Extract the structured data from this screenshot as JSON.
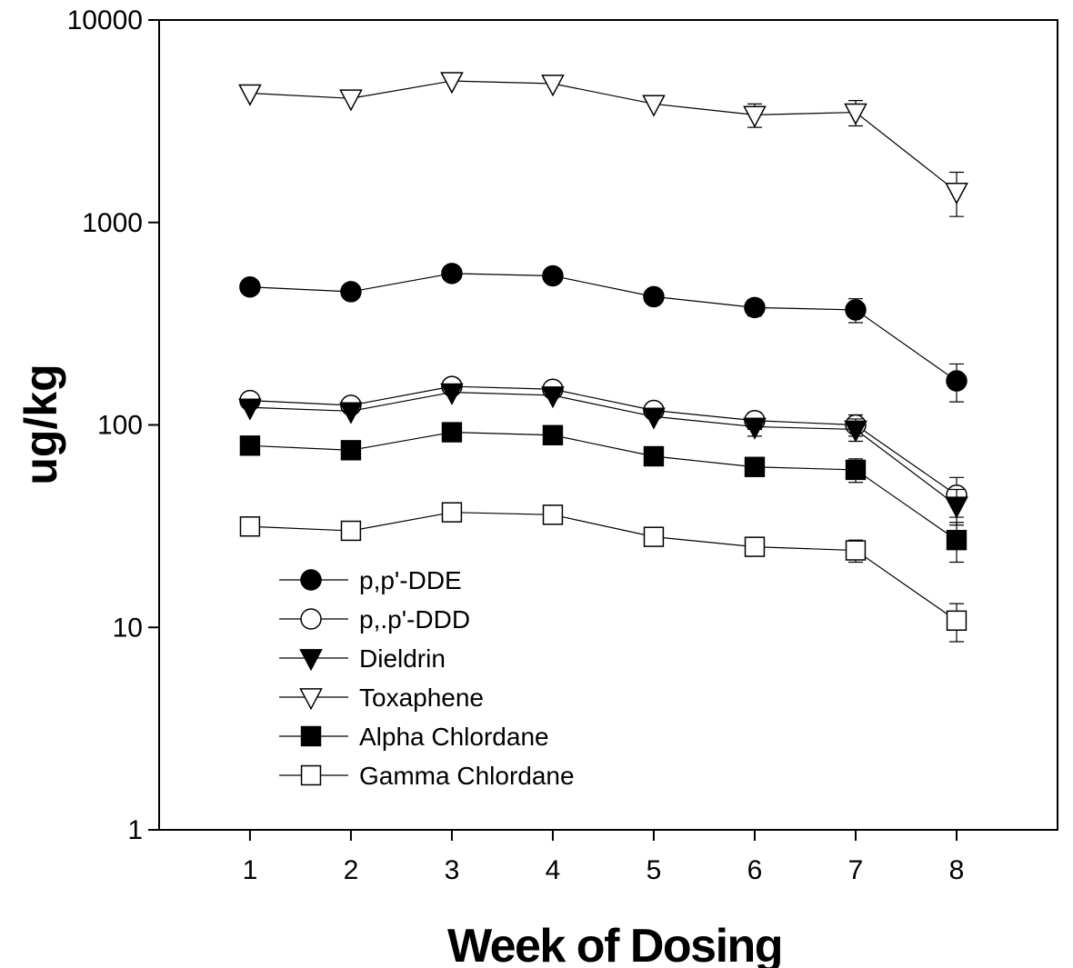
{
  "chart_data": {
    "type": "line",
    "title": "",
    "xlabel": "Week of Dosing",
    "ylabel": "ug/kg",
    "y_scale": "log",
    "ylim": [
      1,
      10000
    ],
    "xlim": [
      0.1,
      9.0
    ],
    "x": [
      1,
      2,
      3,
      4,
      5,
      6,
      7,
      8
    ],
    "x_tick_labels": [
      "1",
      "2",
      "3",
      "4",
      "5",
      "6",
      "7",
      "8"
    ],
    "y_tick_labels": [
      "1",
      "10",
      "100",
      "1000",
      "10000"
    ],
    "y_tick_values": [
      1,
      10,
      100,
      1000,
      10000
    ],
    "grid": false,
    "legend_position": "lower-left",
    "series": [
      {
        "name": "p,p'-DDE",
        "marker": "circle",
        "fill": "#000000",
        "values": [
          480,
          455,
          560,
          545,
          430,
          380,
          370,
          165
        ],
        "err": [
          0,
          0,
          0,
          0,
          0,
          35,
          50,
          35
        ]
      },
      {
        "name": "p,.p'-DDD",
        "marker": "circle",
        "fill": "#ffffff",
        "values": [
          132,
          125,
          155,
          150,
          118,
          105,
          100,
          45
        ],
        "err": [
          0,
          0,
          0,
          0,
          0,
          10,
          12,
          10
        ]
      },
      {
        "name": "Dieldrin",
        "marker": "triangle-down",
        "fill": "#000000",
        "values": [
          122,
          117,
          145,
          140,
          110,
          98,
          95,
          40
        ],
        "err": [
          0,
          0,
          0,
          0,
          0,
          10,
          12,
          8
        ]
      },
      {
        "name": "Toxaphene",
        "marker": "triangle-down",
        "fill": "#ffffff",
        "values": [
          4350,
          4100,
          5000,
          4850,
          3850,
          3400,
          3500,
          1420
        ],
        "err": [
          0,
          0,
          0,
          0,
          0,
          450,
          500,
          350
        ]
      },
      {
        "name": "Alpha Chlordane",
        "marker": "square",
        "fill": "#000000",
        "values": [
          79,
          75,
          92,
          89,
          70,
          62,
          60,
          27
        ],
        "err": [
          0,
          0,
          0,
          0,
          0,
          6,
          8,
          6
        ]
      },
      {
        "name": "Gamma Chlordane",
        "marker": "square",
        "fill": "#ffffff",
        "values": [
          31.5,
          30,
          37,
          36,
          28,
          25,
          24,
          10.8
        ],
        "err": [
          0,
          0,
          0,
          0,
          0,
          2.5,
          3,
          2.3
        ]
      }
    ]
  }
}
